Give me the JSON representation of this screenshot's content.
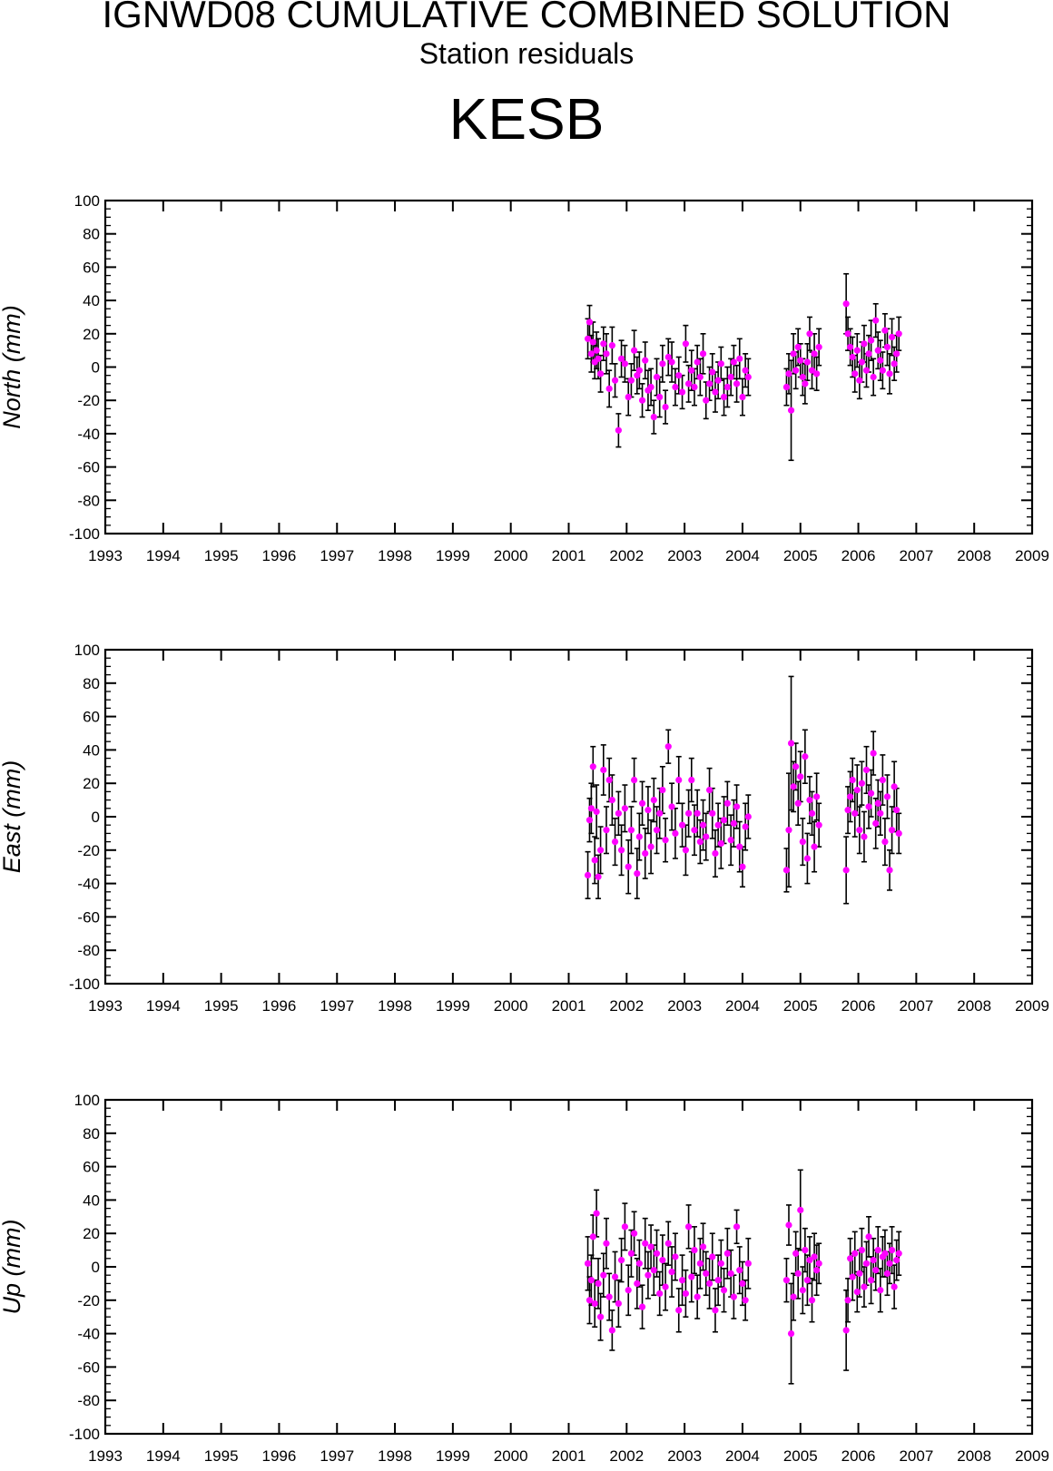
{
  "header": {
    "title": "IGNWD08 CUMULATIVE COMBINED SOLUTION",
    "subtitle": "Station residuals",
    "station": "KESB"
  },
  "colors": {
    "point": "#ff00ff",
    "errorbar": "#000000",
    "frame": "#000000"
  },
  "chart_data": [
    {
      "type": "scatter",
      "ylabel": "North (mm)",
      "ylim": [
        -100,
        100
      ],
      "xlim": [
        1993,
        2009
      ],
      "x_ticks": [
        1993,
        1994,
        1995,
        1996,
        1997,
        1998,
        1999,
        2000,
        2001,
        2002,
        2003,
        2004,
        2005,
        2006,
        2007,
        2008,
        2009
      ],
      "y_ticks": [
        100,
        80,
        60,
        40,
        20,
        0,
        -20,
        -40,
        -60,
        -80,
        -100
      ],
      "series": [
        {
          "x": [
            2001.33,
            2001.36,
            2001.39,
            2001.42,
            2001.45,
            2001.48,
            2001.51,
            2001.55,
            2001.6,
            2001.65,
            2001.7,
            2001.75,
            2001.8,
            2001.86,
            2001.91,
            2001.97,
            2002.03,
            2002.08,
            2002.13,
            2002.18,
            2002.22,
            2002.27,
            2002.32,
            2002.37,
            2002.42,
            2002.47,
            2002.52,
            2002.57,
            2002.62,
            2002.67,
            2002.72,
            2002.78,
            2002.84,
            2002.9,
            2002.96,
            2003.02,
            2003.07,
            2003.12,
            2003.17,
            2003.22,
            2003.27,
            2003.32,
            2003.37,
            2003.43,
            2003.48,
            2003.53,
            2003.58,
            2003.63,
            2003.68,
            2003.74,
            2003.8,
            2003.85,
            2003.9,
            2003.95,
            2004.0,
            2004.05,
            2004.1,
            2004.76,
            2004.8,
            2004.84,
            2004.88,
            2004.92,
            2004.96,
            2005.0,
            2005.04,
            2005.08,
            2005.12,
            2005.16,
            2005.2,
            2005.24,
            2005.28,
            2005.32,
            2005.79,
            2005.82,
            2005.86,
            2005.9,
            2005.94,
            2005.98,
            2006.02,
            2006.06,
            2006.1,
            2006.14,
            2006.18,
            2006.22,
            2006.26,
            2006.3,
            2006.34,
            2006.38,
            2006.42,
            2006.46,
            2006.5,
            2006.54,
            2006.58,
            2006.62,
            2006.66,
            2006.7
          ],
          "y": [
            17,
            27,
            8,
            15,
            3,
            10,
            5,
            -4,
            14,
            8,
            -13,
            13,
            -8,
            -38,
            5,
            2,
            -18,
            -8,
            10,
            -5,
            -2,
            -20,
            4,
            -14,
            -12,
            -30,
            -6,
            -18,
            2,
            -24,
            6,
            3,
            -12,
            -5,
            -15,
            14,
            -10,
            -2,
            -12,
            3,
            -6,
            8,
            -20,
            -10,
            -3,
            -15,
            -8,
            2,
            -18,
            -12,
            -6,
            3,
            -10,
            5,
            -18,
            -2,
            -6,
            -12,
            -4,
            -26,
            8,
            -2,
            12,
            4,
            -6,
            -10,
            3,
            20,
            -2,
            8,
            -4,
            12,
            38,
            20,
            12,
            6,
            -4,
            10,
            -8,
            3,
            14,
            -2,
            8,
            16,
            -6,
            28,
            10,
            4,
            -2,
            22,
            12,
            -4,
            18,
            2,
            8,
            20
          ],
          "err": [
            12,
            10,
            11,
            12,
            10,
            11,
            12,
            11,
            10,
            12,
            11,
            11,
            10,
            10,
            11,
            11,
            11,
            10,
            12,
            11,
            11,
            10,
            11,
            12,
            11,
            10,
            11,
            12,
            11,
            10,
            11,
            12,
            11,
            11,
            10,
            11,
            11,
            12,
            11,
            10,
            11,
            12,
            11,
            10,
            11,
            12,
            11,
            10,
            11,
            12,
            11,
            10,
            11,
            12,
            11,
            10,
            11,
            11,
            12,
            30,
            12,
            11,
            11,
            10,
            11,
            12,
            11,
            10,
            11,
            12,
            10,
            11,
            18,
            10,
            11,
            12,
            11,
            10,
            11,
            12,
            11,
            10,
            11,
            12,
            11,
            10,
            11,
            12,
            11,
            10,
            11,
            12,
            11,
            10,
            11,
            10
          ]
        }
      ]
    },
    {
      "type": "scatter",
      "ylabel": "East (mm)",
      "ylim": [
        -100,
        100
      ],
      "xlim": [
        1993,
        2009
      ],
      "x_ticks": [
        1993,
        1994,
        1995,
        1996,
        1997,
        1998,
        1999,
        2000,
        2001,
        2002,
        2003,
        2004,
        2005,
        2006,
        2007,
        2008,
        2009
      ],
      "y_ticks": [
        100,
        80,
        60,
        40,
        20,
        0,
        -20,
        -40,
        -60,
        -80,
        -100
      ],
      "series": [
        {
          "x": [
            2001.33,
            2001.36,
            2001.39,
            2001.42,
            2001.45,
            2001.48,
            2001.51,
            2001.55,
            2001.6,
            2001.65,
            2001.7,
            2001.75,
            2001.8,
            2001.86,
            2001.91,
            2001.97,
            2002.03,
            2002.08,
            2002.13,
            2002.18,
            2002.22,
            2002.27,
            2002.32,
            2002.37,
            2002.42,
            2002.47,
            2002.52,
            2002.57,
            2002.62,
            2002.67,
            2002.72,
            2002.78,
            2002.84,
            2002.9,
            2002.96,
            2003.02,
            2003.07,
            2003.12,
            2003.17,
            2003.22,
            2003.27,
            2003.32,
            2003.37,
            2003.43,
            2003.48,
            2003.53,
            2003.58,
            2003.63,
            2003.68,
            2003.74,
            2003.8,
            2003.85,
            2003.9,
            2003.95,
            2004.0,
            2004.05,
            2004.1,
            2004.76,
            2004.8,
            2004.84,
            2004.88,
            2004.92,
            2004.96,
            2005.0,
            2005.04,
            2005.08,
            2005.12,
            2005.16,
            2005.2,
            2005.24,
            2005.28,
            2005.32,
            2005.79,
            2005.82,
            2005.86,
            2005.9,
            2005.94,
            2005.98,
            2006.02,
            2006.06,
            2006.1,
            2006.14,
            2006.18,
            2006.22,
            2006.26,
            2006.3,
            2006.34,
            2006.38,
            2006.42,
            2006.46,
            2006.5,
            2006.54,
            2006.58,
            2006.62,
            2006.66,
            2006.7
          ],
          "y": [
            -35,
            -2,
            5,
            30,
            -26,
            3,
            -36,
            -20,
            28,
            -8,
            22,
            10,
            -15,
            2,
            -20,
            5,
            -30,
            -8,
            22,
            -34,
            -12,
            8,
            -22,
            4,
            -18,
            10,
            -8,
            2,
            16,
            -14,
            42,
            6,
            -10,
            22,
            -5,
            -20,
            2,
            22,
            -8,
            2,
            -15,
            -5,
            -12,
            16,
            2,
            -22,
            -5,
            -16,
            -2,
            8,
            -14,
            -4,
            6,
            -18,
            -30,
            -6,
            0,
            -32,
            -8,
            44,
            18,
            30,
            8,
            24,
            -15,
            36,
            -25,
            10,
            2,
            -18,
            12,
            -5,
            -32,
            4,
            12,
            22,
            2,
            16,
            -8,
            20,
            -12,
            28,
            6,
            14,
            38,
            -4,
            8,
            2,
            22,
            -15,
            12,
            -32,
            -8,
            18,
            4,
            -10
          ],
          "err": [
            14,
            13,
            15,
            12,
            14,
            16,
            13,
            14,
            15,
            14,
            13,
            15,
            14,
            13,
            15,
            14,
            16,
            14,
            13,
            15,
            14,
            13,
            15,
            14,
            16,
            13,
            14,
            15,
            14,
            13,
            10,
            14,
            15,
            14,
            13,
            15,
            14,
            13,
            15,
            14,
            13,
            15,
            14,
            13,
            15,
            14,
            13,
            15,
            14,
            13,
            15,
            14,
            13,
            15,
            12,
            14,
            13,
            13,
            34,
            40,
            15,
            14,
            13,
            15,
            14,
            16,
            15,
            14,
            13,
            15,
            14,
            13,
            20,
            14,
            15,
            13,
            14,
            15,
            14,
            13,
            15,
            14,
            13,
            14,
            13,
            15,
            14,
            13,
            15,
            14,
            13,
            12,
            14,
            15,
            13,
            12
          ]
        }
      ]
    },
    {
      "type": "scatter",
      "ylabel": "Up (mm)",
      "ylim": [
        -100,
        100
      ],
      "xlim": [
        1993,
        2009
      ],
      "x_ticks": [
        1993,
        1994,
        1995,
        1996,
        1997,
        1998,
        1999,
        2000,
        2001,
        2002,
        2003,
        2004,
        2005,
        2006,
        2007,
        2008,
        2009
      ],
      "y_ticks": [
        100,
        80,
        60,
        40,
        20,
        0,
        -20,
        -40,
        -60,
        -80,
        -100
      ],
      "series": [
        {
          "x": [
            2001.33,
            2001.36,
            2001.39,
            2001.42,
            2001.45,
            2001.48,
            2001.51,
            2001.55,
            2001.6,
            2001.65,
            2001.7,
            2001.75,
            2001.8,
            2001.86,
            2001.91,
            2001.97,
            2002.03,
            2002.08,
            2002.13,
            2002.18,
            2002.22,
            2002.27,
            2002.32,
            2002.37,
            2002.42,
            2002.47,
            2002.52,
            2002.57,
            2002.62,
            2002.67,
            2002.72,
            2002.78,
            2002.84,
            2002.9,
            2002.96,
            2003.02,
            2003.07,
            2003.12,
            2003.17,
            2003.22,
            2003.27,
            2003.32,
            2003.37,
            2003.43,
            2003.48,
            2003.53,
            2003.58,
            2003.63,
            2003.68,
            2003.74,
            2003.8,
            2003.85,
            2003.9,
            2003.95,
            2004.0,
            2004.05,
            2004.1,
            2004.76,
            2004.8,
            2004.84,
            2004.88,
            2004.92,
            2004.96,
            2005.0,
            2005.04,
            2005.08,
            2005.12,
            2005.16,
            2005.2,
            2005.24,
            2005.28,
            2005.32,
            2005.79,
            2005.82,
            2005.86,
            2005.9,
            2005.94,
            2005.98,
            2006.02,
            2006.06,
            2006.1,
            2006.14,
            2006.18,
            2006.22,
            2006.26,
            2006.3,
            2006.34,
            2006.38,
            2006.42,
            2006.46,
            2006.5,
            2006.54,
            2006.58,
            2006.62,
            2006.66,
            2006.7
          ],
          "y": [
            2,
            -20,
            -8,
            18,
            -22,
            32,
            -10,
            -30,
            -5,
            14,
            -18,
            -38,
            -6,
            -22,
            4,
            24,
            -14,
            8,
            20,
            -10,
            2,
            -24,
            14,
            -5,
            12,
            -2,
            8,
            -16,
            4,
            -12,
            14,
            -3,
            6,
            -26,
            -8,
            -16,
            24,
            -6,
            10,
            -18,
            2,
            12,
            -4,
            -10,
            6,
            -26,
            -8,
            2,
            -14,
            8,
            -4,
            -18,
            24,
            -2,
            -10,
            -20,
            2,
            -8,
            25,
            -40,
            -18,
            8,
            -4,
            34,
            -14,
            10,
            -8,
            4,
            -20,
            6,
            -2,
            2,
            -38,
            -20,
            5,
            -6,
            8,
            -15,
            -4,
            10,
            -12,
            2,
            18,
            -8,
            4,
            -2,
            10,
            -14,
            6,
            8,
            -4,
            2,
            10,
            -12,
            4,
            8
          ],
          "err": [
            16,
            14,
            15,
            13,
            14,
            14,
            15,
            14,
            13,
            15,
            14,
            12,
            15,
            14,
            13,
            14,
            15,
            14,
            13,
            15,
            14,
            13,
            15,
            14,
            13,
            15,
            14,
            13,
            15,
            14,
            13,
            15,
            14,
            13,
            15,
            14,
            13,
            15,
            14,
            13,
            15,
            14,
            13,
            15,
            14,
            13,
            15,
            14,
            13,
            15,
            14,
            13,
            10,
            14,
            13,
            12,
            15,
            13,
            12,
            30,
            14,
            13,
            15,
            24,
            14,
            13,
            15,
            14,
            13,
            14,
            15,
            12,
            24,
            13,
            12,
            14,
            13,
            12,
            14,
            13,
            12,
            13,
            12,
            14,
            13,
            12,
            14,
            13,
            12,
            14,
            13,
            12,
            14,
            13,
            12,
            13
          ]
        }
      ]
    }
  ]
}
